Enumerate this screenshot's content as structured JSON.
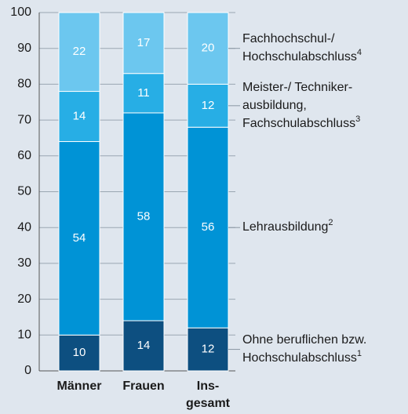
{
  "chart_data": {
    "type": "stacked_bar",
    "categories": [
      "Männer",
      "Frauen",
      [
        "Ins-",
        "gesamt"
      ]
    ],
    "series": [
      {
        "name": [
          "Ohne beruflichen bzw.",
          "Hochschulabschluss"
        ],
        "note": "1",
        "color": "#0d4f80",
        "values": [
          10,
          14,
          12
        ]
      },
      {
        "name": [
          "Lehrausbildung"
        ],
        "note": "2",
        "color": "#0093d6",
        "values": [
          54,
          58,
          56
        ]
      },
      {
        "name": [
          "Meister-/ Techniker-",
          "ausbildung,",
          "Fachschulabschluss"
        ],
        "note": "3",
        "color": "#27aee5",
        "values": [
          14,
          11,
          12
        ]
      },
      {
        "name": [
          "Fachhochschul-/",
          "Hochschulabschluss"
        ],
        "note": "4",
        "color": "#6cc7ef",
        "values": [
          22,
          17,
          20
        ]
      }
    ],
    "ylim": [
      0,
      100
    ],
    "yticks": [
      0,
      10,
      20,
      30,
      40,
      50,
      60,
      70,
      80,
      90,
      100
    ],
    "grid": true
  }
}
